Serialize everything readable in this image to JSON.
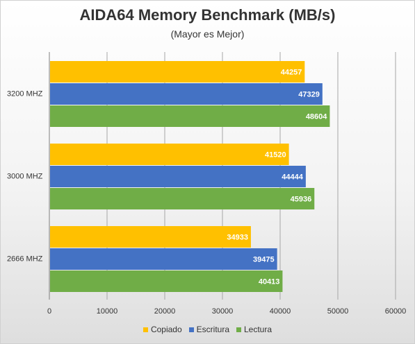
{
  "chart_data": {
    "type": "bar",
    "orientation": "horizontal",
    "title": "AIDA64 Memory Benchmark  (MB/s)",
    "subtitle": "(Mayor es Mejor)",
    "categories": [
      "3200 MHZ",
      "3000 MHZ",
      "2666 MHZ"
    ],
    "series": [
      {
        "name": "Copiado",
        "color": "#ffc000",
        "values": [
          44257,
          41520,
          34933
        ]
      },
      {
        "name": "Escritura",
        "color": "#4472c4",
        "values": [
          47329,
          44444,
          39475
        ]
      },
      {
        "name": "Lectura",
        "color": "#70ad47",
        "values": [
          48604,
          45936,
          40413
        ]
      }
    ],
    "xlim": [
      0,
      60000
    ],
    "xticks": [
      "0",
      "10000",
      "20000",
      "30000",
      "40000",
      "50000",
      "60000"
    ],
    "grid": true,
    "legend_position": "bottom"
  }
}
